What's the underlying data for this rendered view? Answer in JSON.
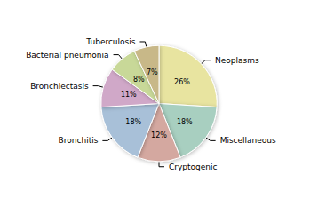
{
  "chart_data": {
    "type": "pie",
    "categories": [
      "Neoplasms",
      "Miscellaneous",
      "Cryptogenic",
      "Bronchitis",
      "Bronchiectasis",
      "Bacterial pneumonia",
      "Tuberculosis"
    ],
    "values": [
      26,
      18,
      12,
      18,
      11,
      8,
      7
    ],
    "value_labels": [
      "26%",
      "18%",
      "12%",
      "18%",
      "11%",
      "8%",
      "7%"
    ],
    "colors": [
      "#e8e4a0",
      "#a8cfc0",
      "#d4a8a0",
      "#a8c0d8",
      "#d0a8c8",
      "#c8d898",
      "#c8b888"
    ],
    "data_labels": true
  }
}
